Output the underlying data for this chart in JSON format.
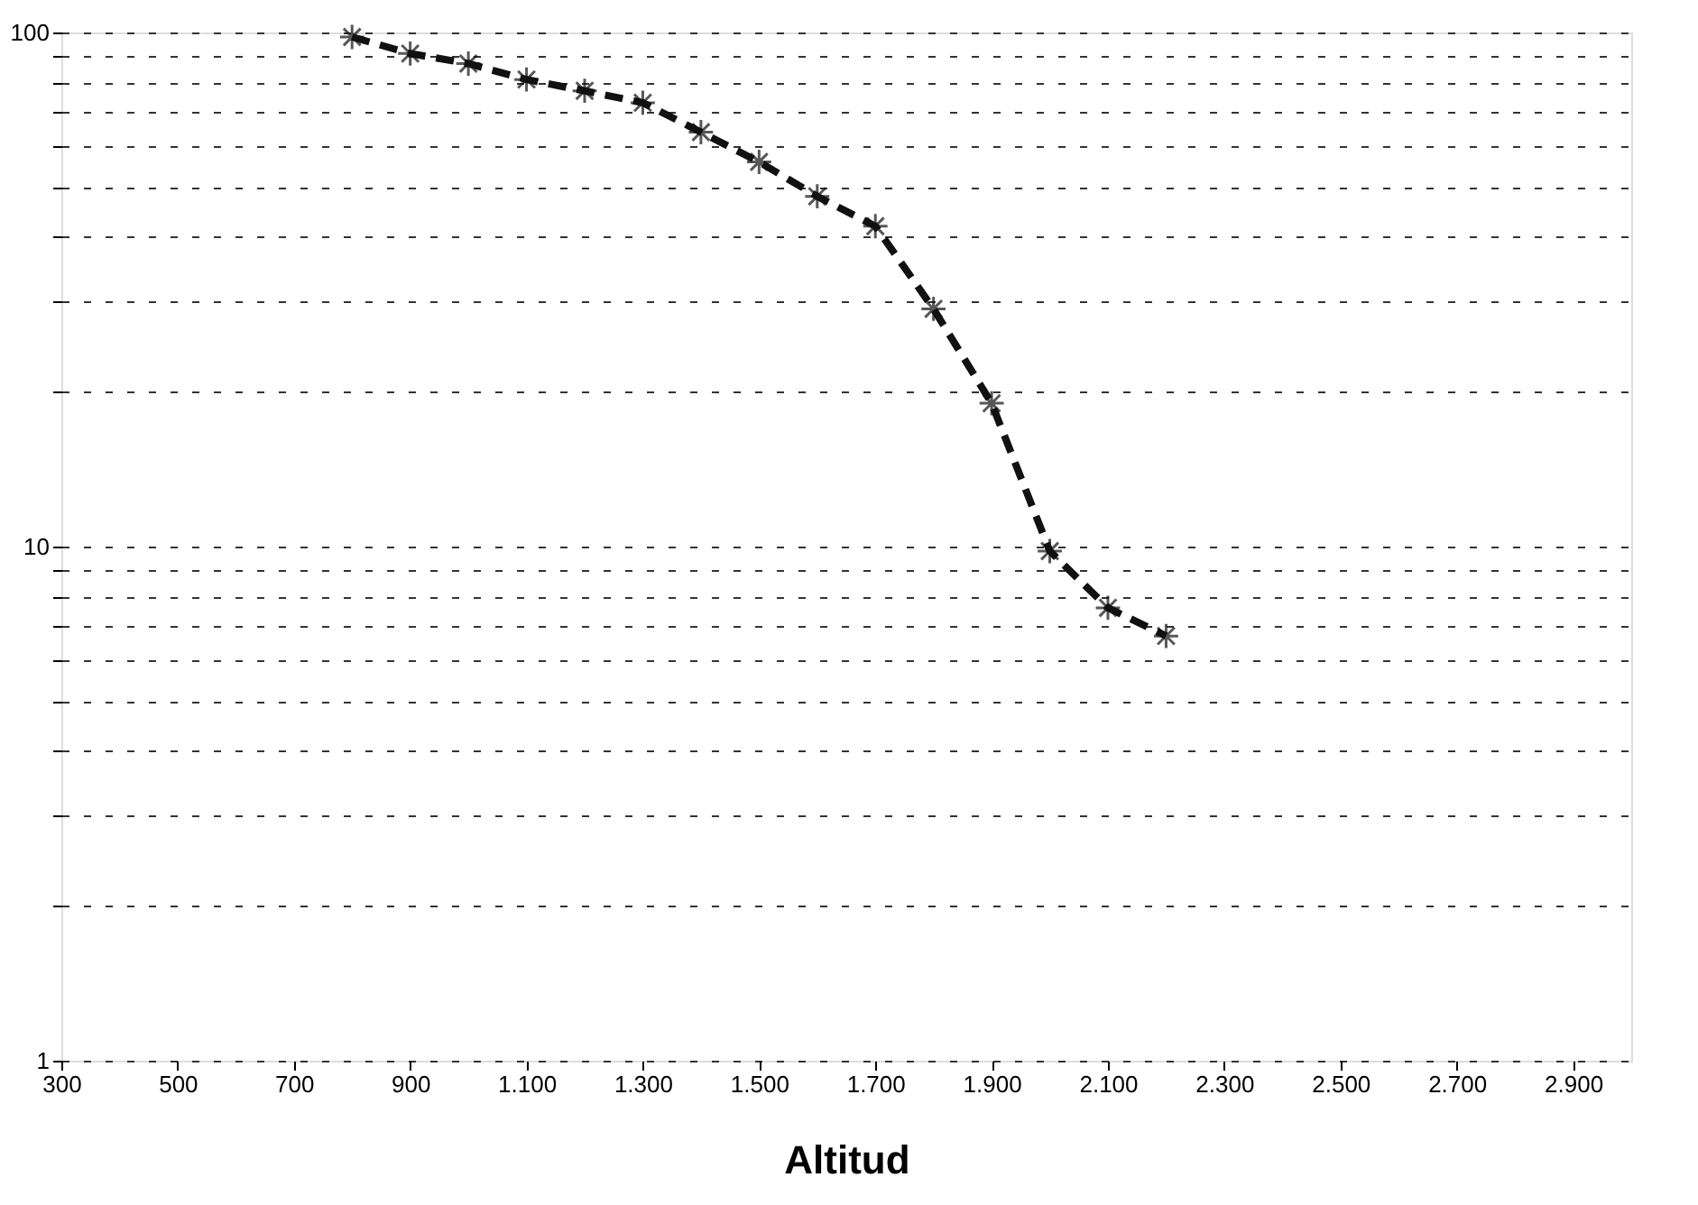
{
  "chart_data": {
    "type": "line",
    "xlabel": "Altitud",
    "x": [
      800,
      900,
      1000,
      1100,
      1200,
      1300,
      1400,
      1500,
      1600,
      1700,
      1800,
      1900,
      2000,
      2100,
      2200
    ],
    "series": [
      {
        "color": "#111111",
        "values": [
          98,
          91,
          87,
          81,
          77,
          73,
          64,
          56,
          48,
          42,
          29,
          19,
          9.8,
          7.6,
          6.7
        ]
      }
    ],
    "xlim": [
      300,
      3000
    ],
    "xticks": [
      300,
      500,
      700,
      900,
      {
        "value": 1100,
        "label": "1.100"
      },
      {
        "value": 1300,
        "label": "1.300"
      },
      {
        "value": 1500,
        "label": "1.500"
      },
      {
        "value": 1700,
        "label": "1.700"
      },
      {
        "value": 1900,
        "label": "1.900"
      },
      {
        "value": 2100,
        "label": "2.100"
      },
      {
        "value": 2300,
        "label": "2.300"
      },
      {
        "value": 2500,
        "label": "2.500"
      },
      {
        "value": 2700,
        "label": "2.700"
      },
      {
        "value": 2900,
        "label": "2.900"
      }
    ],
    "ylim": [
      1,
      100
    ],
    "log": "y",
    "yticks": [
      1,
      {
        "value": 2,
        "label": null
      },
      {
        "value": 3,
        "label": null
      },
      {
        "value": 4,
        "label": null
      },
      {
        "value": 5,
        "label": null
      },
      {
        "value": 6,
        "label": null
      },
      {
        "value": 7,
        "label": null
      },
      {
        "value": 8,
        "label": null
      },
      {
        "value": 9,
        "label": null
      },
      10,
      {
        "value": 20,
        "label": null
      },
      {
        "value": 30,
        "label": null
      },
      {
        "value": 40,
        "label": null
      },
      {
        "value": 50,
        "label": null
      },
      {
        "value": 60,
        "label": null
      },
      {
        "value": 70,
        "label": null
      },
      {
        "value": 80,
        "label": null
      },
      {
        "value": 90,
        "label": null
      },
      100
    ],
    "grid": "y",
    "marker": "cross",
    "line_style": "dashed"
  }
}
